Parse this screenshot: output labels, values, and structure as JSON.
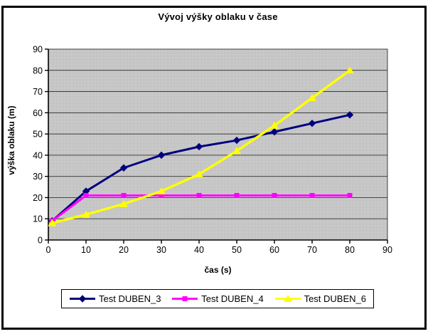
{
  "chart_data": {
    "type": "line",
    "title": "Vývoj výšky oblaku v čase",
    "xlabel": "čas (s)",
    "ylabel": "výška oblaku (m)",
    "xlim": [
      0,
      90
    ],
    "ylim": [
      0,
      90
    ],
    "xticks": [
      0,
      10,
      20,
      30,
      40,
      50,
      60,
      70,
      80,
      90
    ],
    "yticks": [
      0,
      10,
      20,
      30,
      40,
      50,
      60,
      70,
      80,
      90
    ],
    "grid": "horizontal",
    "legend_position": "bottom",
    "plot_bg": "#c6c6c6",
    "gridline_color": "#3f3f3f",
    "x": [
      1,
      10,
      20,
      30,
      40,
      50,
      60,
      70,
      80
    ],
    "series": [
      {
        "name": "Test DUBEN_3",
        "color": "#000080",
        "marker": "diamond",
        "values": [
          9,
          23,
          34,
          40,
          44,
          47,
          51,
          55,
          59
        ]
      },
      {
        "name": "Test DUBEN_4",
        "color": "#ff00ff",
        "marker": "square",
        "values": [
          9,
          21,
          21,
          21,
          21,
          21,
          21,
          21,
          21
        ]
      },
      {
        "name": "Test DUBEN_6",
        "color": "#ffff00",
        "marker": "triangle",
        "values": [
          8,
          12,
          17,
          23,
          31,
          42,
          54,
          67,
          80
        ]
      }
    ]
  }
}
